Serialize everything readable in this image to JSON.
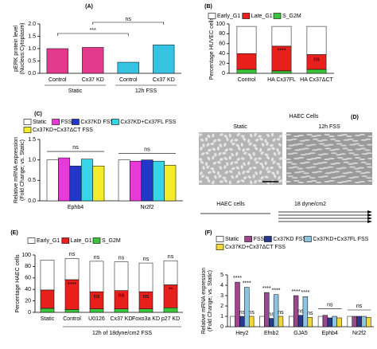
{
  "chart_data": [
    {
      "type": "bar",
      "panel": "(A)",
      "ylabel": [
        "pERK protein level",
        "(Nucleus:Cytoplasm)"
      ],
      "categories": [
        "Control",
        "Cx37 KD",
        "Control",
        "Cx37 KD"
      ],
      "values": [
        1.0,
        1.05,
        0.45,
        1.15
      ],
      "colors": [
        "#e2398c",
        "#e2398c",
        "#36c3e2",
        "#36c3e2"
      ],
      "groups": [
        "Static",
        "12h FSS"
      ],
      "annotations": [
        "***",
        "ns"
      ],
      "ylim": [
        0,
        2
      ],
      "yticks": [
        {
          "value": 0,
          "label": "0.0"
        },
        0.5,
        {
          "value": 1,
          "label": "1.0"
        },
        1.5,
        {
          "value": 2,
          "label": "2.0"
        }
      ]
    },
    {
      "type": "stacked_bar",
      "panel": "(B)",
      "ylabel": [
        "Percentage HUVEC cells"
      ],
      "legend": "top",
      "categories": [
        "Control",
        "HA Cx37FL",
        "HA Cx37ΔCT"
      ],
      "series": [
        {
          "name": "Early_G1",
          "color": "#ffffff",
          "values": [
            55,
            40,
            57
          ]
        },
        {
          "name": "Late_G1",
          "color": "#e8201c",
          "values": [
            32,
            50,
            30
          ],
          "annotations": [
            null,
            "****",
            "ns"
          ]
        },
        {
          "name": "S_G2M",
          "color": "#3cc43c",
          "values": [
            8,
            5,
            8
          ]
        }
      ],
      "ylim": [
        0,
        100
      ],
      "yticks": [
        0,
        20,
        40,
        60,
        80,
        100
      ]
    },
    {
      "type": "bar",
      "panel": "(C)",
      "ylabel": [
        "Relative mRNA expression",
        "(Fold Change; vs. Static)"
      ],
      "legend": "top",
      "categories": [
        "Ephb4",
        "Nr2f2"
      ],
      "group_annotations": [
        "ns",
        "ns"
      ],
      "series": [
        {
          "name": "Static",
          "color": "#ffffff",
          "values": [
            1.0,
            1.0
          ]
        },
        {
          "name": "FSS",
          "color": "#e83ad8",
          "values": [
            1.05,
            0.97
          ]
        },
        {
          "name": "Cx37KD FSS",
          "color": "#2238c8",
          "values": [
            0.85,
            1.0
          ]
        },
        {
          "name": "Cx37KD+Cx37FL FSS",
          "color": "#38d4e8",
          "values": [
            1.02,
            0.97
          ]
        },
        {
          "name": "Cx37KD+Cx37ΔCT FSS",
          "color": "#f2ec2a",
          "values": [
            0.85,
            0.87
          ]
        }
      ],
      "ylim": [
        0,
        1.5
      ],
      "yticks": [
        {
          "value": 0,
          "label": "0.0"
        },
        0.5,
        {
          "value": 1,
          "label": "1.0"
        },
        1.5
      ]
    },
    {
      "type": "image",
      "panel": "(D)",
      "title": "HAEC Cells",
      "left_label": "Static",
      "right_label": "12h FSS",
      "bottom_label": "HAEC cells",
      "flow_label": "18 dyne/cm2"
    },
    {
      "type": "stacked_bar",
      "panel": "(E)",
      "ylabel": [
        "Percentage HAEC cells"
      ],
      "legend": "top",
      "categories": [
        "Static",
        "Control",
        "U0126",
        "Cx37 KD",
        "Foxo3a KD",
        "p27 KD"
      ],
      "annotations": [
        null,
        "ns",
        "ns",
        "ns",
        "ns",
        "ns"
      ],
      "group_label": "12h of 18dyne/cm2 FSS",
      "series": [
        {
          "name": "Early_G1",
          "color": "#ffffff",
          "values": [
            52,
            37,
            53,
            50,
            50,
            42
          ]
        },
        {
          "name": "Late_G1",
          "color": "#e8201c",
          "values": [
            32,
            52,
            30,
            32,
            30,
            40
          ],
          "annotations": [
            null,
            "****",
            "ns",
            "ns",
            "ns",
            "**"
          ]
        },
        {
          "name": "S_G2M",
          "color": "#3cc43c",
          "values": [
            7,
            5,
            6,
            6,
            6,
            8
          ]
        }
      ],
      "ylim": [
        0,
        100
      ],
      "yticks": [
        0,
        20,
        40,
        60,
        80,
        100
      ]
    },
    {
      "type": "bar",
      "panel": "(F)",
      "ylabel": [
        "Relative mRNA expression",
        "(Fold Change; vs. Static)"
      ],
      "legend": "top",
      "categories": [
        "Hey2",
        "Efnb2",
        "GJA5",
        "Ephb4",
        "Nr2f2"
      ],
      "group_annotations": [
        null,
        null,
        null,
        "ns",
        "ns"
      ],
      "series": [
        {
          "name": "Static",
          "color": "#ffffff",
          "values": [
            1.0,
            1.0,
            1.0,
            1.0,
            1.0
          ]
        },
        {
          "name": "FSS",
          "color": "#9a4a8c",
          "values": [
            4.3,
            3.3,
            3.0,
            1.1,
            1.0
          ],
          "annotations": [
            "****",
            "****",
            "****",
            null,
            null
          ]
        },
        {
          "name": "Cx37KD FSS",
          "color": "#2a3a8a",
          "values": [
            1.0,
            0.8,
            1.1,
            0.85,
            1.0
          ],
          "annotations": [
            "ns",
            "ns",
            "ns",
            null,
            null
          ]
        },
        {
          "name": "Cx37KD+Cx37FL FSS",
          "color": "#8ec4e0",
          "values": [
            3.8,
            3.1,
            2.9,
            1.0,
            1.0
          ],
          "annotations": [
            "****",
            "****",
            "****",
            null,
            null
          ]
        },
        {
          "name": "Cx37KD+Cx37ΔCT FSS",
          "color": "#f0d83a",
          "values": [
            1.0,
            1.0,
            0.9,
            0.85,
            0.9
          ],
          "annotations": [
            "ns",
            "ns",
            "ns",
            null,
            null
          ]
        }
      ],
      "ylim": [
        0,
        5
      ],
      "yticks": [
        0,
        1,
        2,
        3,
        4,
        5
      ]
    }
  ]
}
